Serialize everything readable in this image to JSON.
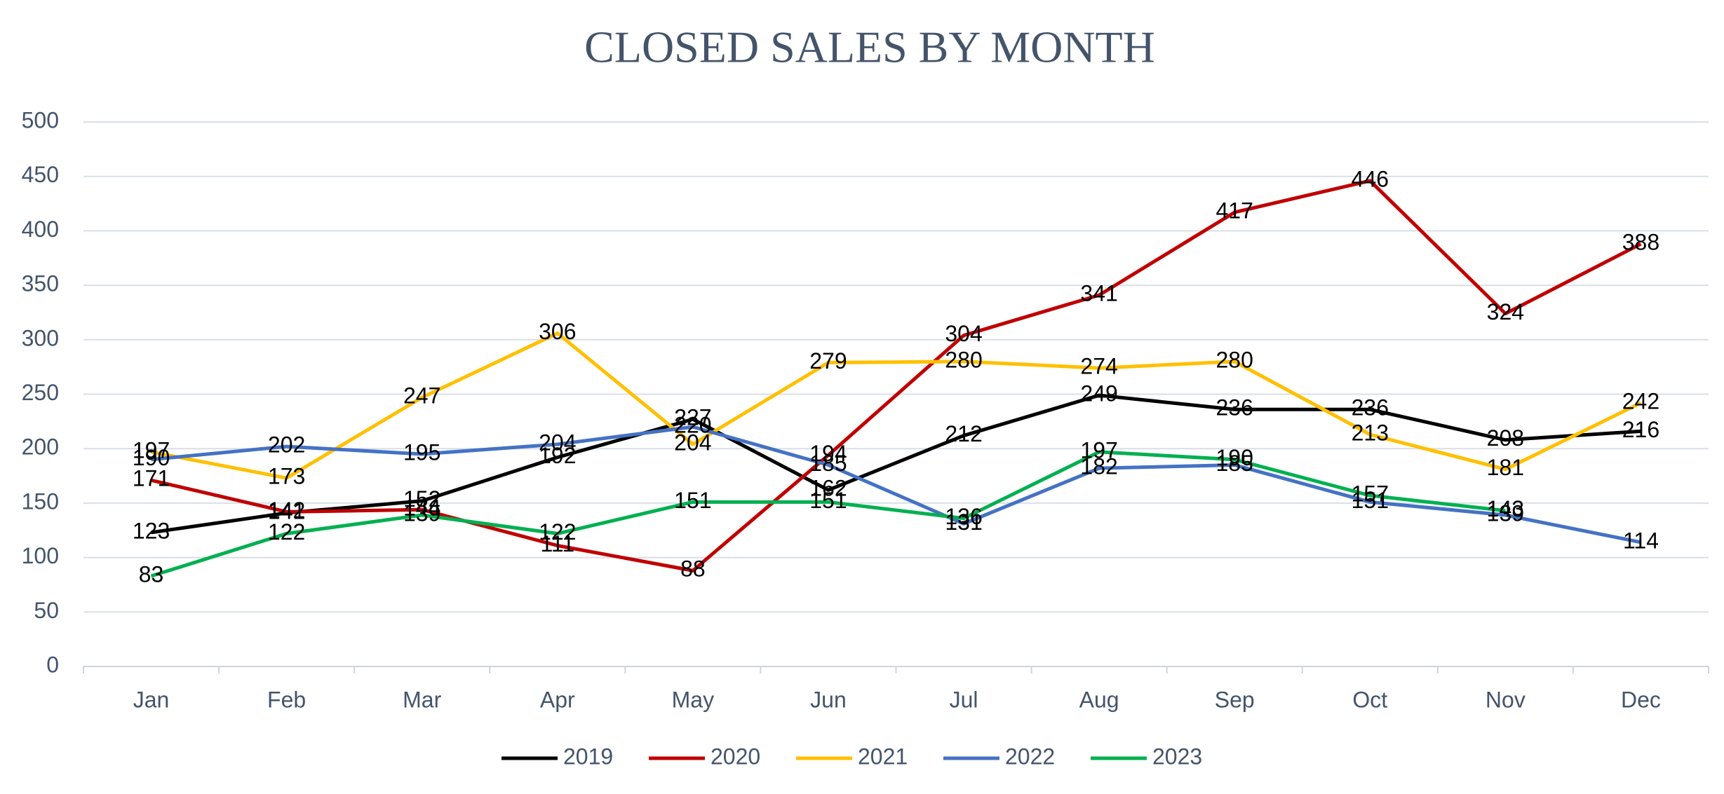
{
  "chart_data": {
    "type": "line",
    "title": "CLOSED SALES BY MONTH",
    "categories": [
      "Jan",
      "Feb",
      "Mar",
      "Apr",
      "May",
      "Jun",
      "Jul",
      "Aug",
      "Sep",
      "Oct",
      "Nov",
      "Dec"
    ],
    "series": [
      {
        "name": "2019",
        "color": "#000000",
        "values": [
          123,
          141,
          152,
          192,
          227,
          162,
          212,
          249,
          236,
          236,
          208,
          216
        ]
      },
      {
        "name": "2020",
        "color": "#c00000",
        "values": [
          171,
          142,
          144,
          111,
          88,
          194,
          304,
          341,
          417,
          446,
          324,
          388
        ]
      },
      {
        "name": "2021",
        "color": "#ffc000",
        "values": [
          197,
          173,
          247,
          306,
          204,
          279,
          280,
          274,
          280,
          213,
          181,
          242
        ]
      },
      {
        "name": "2022",
        "color": "#4472c4",
        "values": [
          190,
          202,
          195,
          204,
          220,
          185,
          131,
          182,
          185,
          151,
          139,
          114
        ]
      },
      {
        "name": "2023",
        "color": "#00b050",
        "values": [
          83,
          122,
          139,
          122,
          151,
          151,
          136,
          197,
          190,
          157,
          143,
          null
        ]
      }
    ],
    "ylim": [
      0,
      500
    ],
    "yticks": [
      0,
      50,
      100,
      150,
      200,
      250,
      300,
      350,
      400,
      450,
      500
    ],
    "grid": true,
    "legend": "bottom"
  }
}
